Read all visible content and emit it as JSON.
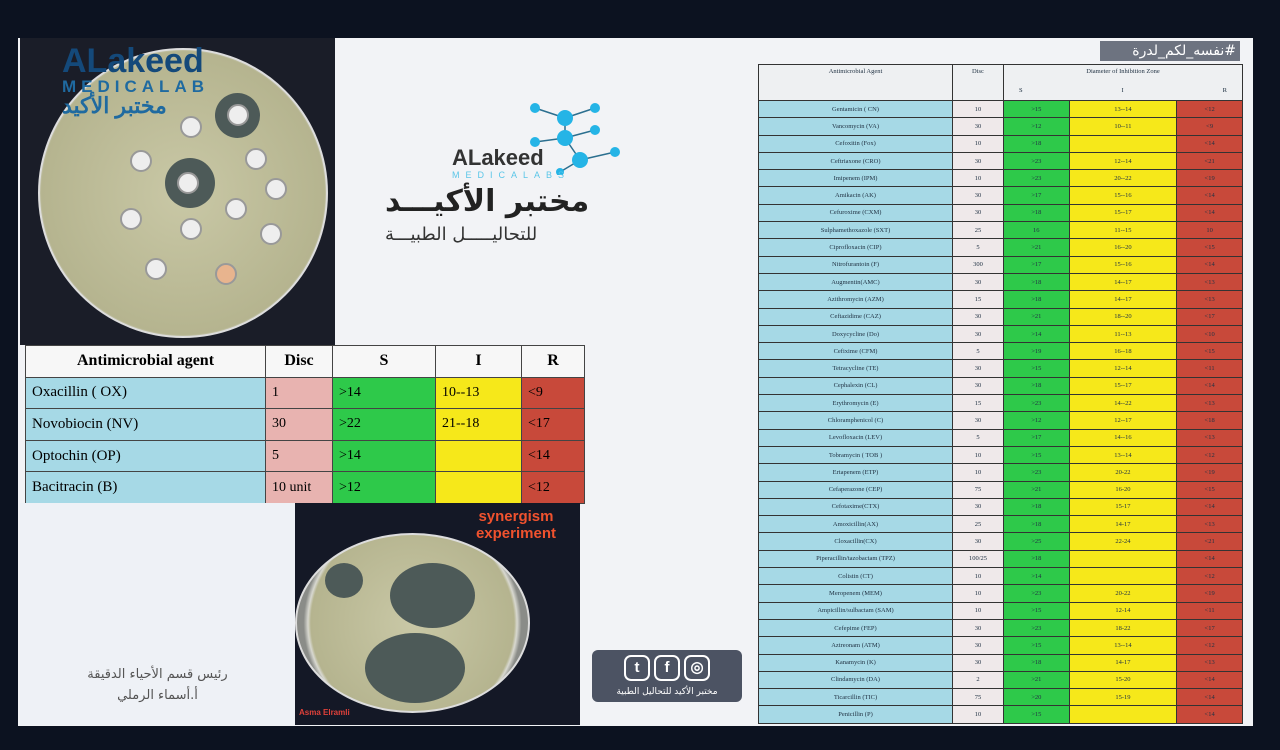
{
  "watermark": {
    "line1": "ALakeed",
    "line2": "MEDICALAB",
    "line3": "مختبر الأكيد"
  },
  "logo": {
    "en": "ALakeed",
    "sub": "MEDICALABS",
    "ar_title": "مختبر الأكيـــد",
    "ar_sub": "للتحاليـــــل الطبيـــة"
  },
  "small_table": {
    "headers": [
      "Antimicrobial agent",
      "Disc",
      "S",
      "I",
      "R"
    ],
    "rows": [
      {
        "agent": "Oxacillin      ( OX)",
        "disc": "1",
        "s": ">14",
        "i": "10--13",
        "r": "<9"
      },
      {
        "agent": "Novobiocin   (NV)",
        "disc": "30",
        "s": ">22",
        "i": "21--18",
        "r": "<17"
      },
      {
        "agent": "Optochin (OP)",
        "disc": "5",
        "s": ">14",
        "i": "",
        "r": "<14"
      },
      {
        "agent": "Bacitracin (B)",
        "disc": "10 unit",
        "s": ">12",
        "i": "",
        "r": "<12"
      }
    ]
  },
  "signature": {
    "line1": "رئيس قسم الأحياء الدقيقة",
    "line2": "أ.أسماء الرملي"
  },
  "synergism": {
    "title1": "synergism",
    "title2": "experiment",
    "author": "Asma Elramli"
  },
  "big_table": {
    "headers": {
      "agent": "Antimicrobial Agent",
      "disc": "Disc",
      "diameter": "Diameter of Inhibition Zone",
      "s": "S",
      "i": "I",
      "r": "R"
    },
    "rows": [
      [
        "Gentamicin  ( CN)",
        "10",
        ">15",
        "13--14",
        "<12"
      ],
      [
        "Vancomycin  (VA)",
        "30",
        ">12",
        "10--11",
        "<9"
      ],
      [
        "Cefoxitin    (Fox)",
        "10",
        ">18",
        "",
        "<14"
      ],
      [
        "Ceftriaxone  (CRO)",
        "30",
        ">23",
        "12--14",
        "<21"
      ],
      [
        "Imipenem   (IPM)",
        "10",
        ">23",
        "20--22",
        "<19"
      ],
      [
        "Amikacin    (AK)",
        "30",
        ">17",
        "15--16",
        "<14"
      ],
      [
        "Cefuroxime  (CXM)",
        "30",
        ">18",
        "15--17",
        "<14"
      ],
      [
        "Sulphamethoxazole (SXT)",
        "25",
        "16",
        "11--15",
        "10"
      ],
      [
        "Ciprofloxacin   (CIP)",
        "5",
        ">21",
        "16--20",
        "<15"
      ],
      [
        "Nitrofurantoin  (F)",
        "300",
        ">17",
        "15--16",
        "<14"
      ],
      [
        "Augmentin(AMC)",
        "30",
        ">18",
        "14--17",
        "<13"
      ],
      [
        "Azithromycin  (AZM)",
        "15",
        ">18",
        "14--17",
        "<13"
      ],
      [
        "Ceftazidime    (CAZ)",
        "30",
        ">21",
        "18--20",
        "<17"
      ],
      [
        "Doxycycline   (Do)",
        "30",
        ">14",
        "11--13",
        "<10"
      ],
      [
        "Cefixime      (CFM)",
        "5",
        ">19",
        "16--18",
        "<15"
      ],
      [
        "Tetracycline    (TE)",
        "30",
        ">15",
        "12--14",
        "<11"
      ],
      [
        "Cephalexin    (CL)",
        "30",
        ">18",
        "15--17",
        "<14"
      ],
      [
        "Erythromycin  (E)",
        "15",
        ">23",
        "14--22",
        "<13"
      ],
      [
        "Chloramphenicol  (C)",
        "30",
        ">12",
        "12--17",
        "<18"
      ],
      [
        "Levofloxacin   (LEV)",
        "5",
        ">17",
        "14--16",
        "<13"
      ],
      [
        "Tobramycin   ( TOB )",
        "10",
        ">15",
        "13--14",
        "<12"
      ],
      [
        "Ertapenem (ETP)",
        "10",
        ">23",
        "20-22",
        "<19"
      ],
      [
        "Cefaperazone (CEP)",
        "75",
        ">21",
        "16-20",
        "<15"
      ],
      [
        "Cefotaxime(CTX)",
        "30",
        ">18",
        "15-17",
        "<14"
      ],
      [
        "Amoxicillin(AX)",
        "25",
        ">18",
        "14-17",
        "<13"
      ],
      [
        "Cloxacillin(CX)",
        "30",
        ">25",
        "22-24",
        "<21"
      ],
      [
        "Piperacillin/tazobactam (TPZ)",
        "100/25",
        ">18",
        "",
        "<14"
      ],
      [
        "Colistin   (CT)",
        "10",
        ">14",
        "",
        "<12"
      ],
      [
        "Meropenem (MEM)",
        "10",
        ">23",
        "20-22",
        "<19"
      ],
      [
        "Ampicillin/sulbactam (SAM)",
        "10",
        ">15",
        "12-14",
        "<11"
      ],
      [
        "Cefepime (FEP)",
        "30",
        ">23",
        "18-22",
        "<17"
      ],
      [
        "Aztreonam    (ATM)",
        "30",
        ">15",
        "13--14",
        "<12"
      ],
      [
        "Kanamycin          (K)",
        "30",
        ">18",
        "14-17",
        "<13"
      ],
      [
        "Clindamycin    (DA)",
        "2",
        ">21",
        "15-20",
        "<14"
      ],
      [
        "Ticarcillin          (TIC)",
        "75",
        ">20",
        "15-19",
        "<14"
      ],
      [
        "Penicillin           (P)",
        "10",
        ">15",
        "",
        "<14"
      ]
    ]
  },
  "overlay": {
    "hashtag": "#نفسه_لكم_لدرة",
    "caption": "مختبر الأكيد للتحاليل الطبية",
    "icons": [
      "twitter-icon",
      "facebook-icon",
      "instagram-icon"
    ]
  },
  "colors": {
    "agent": "#a6d9e6",
    "s": "#2ec94a",
    "i": "#f6e81a",
    "r": "#c8493a"
  }
}
